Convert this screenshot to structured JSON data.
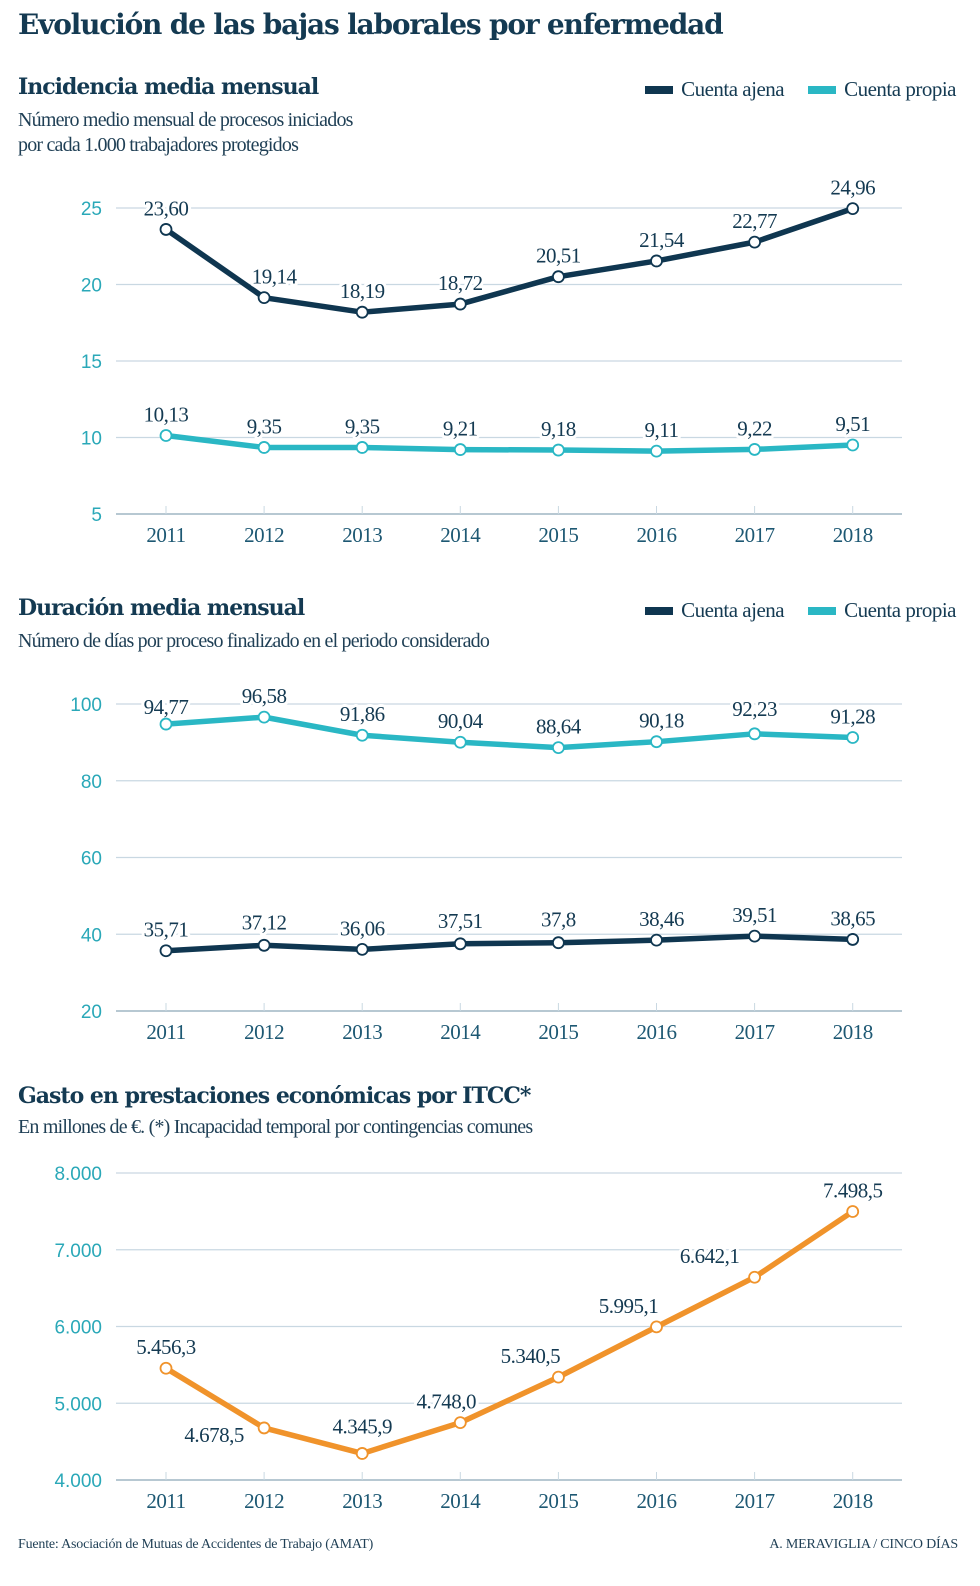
{
  "title": "Evolución de las bajas laborales por enfermedad",
  "colors": {
    "ajena": "#0f3650",
    "propia": "#2ab7c4",
    "gasto": "#f0932b",
    "axis": "#2aa8b8",
    "grid": "#c9d8e2",
    "text": "#143a52"
  },
  "legend": {
    "ajena": "Cuenta ajena",
    "propia": "Cuenta propia"
  },
  "chart_data": [
    {
      "type": "line",
      "title": "Incidencia media mensual",
      "subtitle_lines": [
        "Número medio mensual de procesos iniciados",
        "por cada 1.000 trabajadores protegidos"
      ],
      "x": [
        "2011",
        "2012",
        "2013",
        "2014",
        "2015",
        "2016",
        "2017",
        "2018"
      ],
      "ylim": [
        5,
        25
      ],
      "yticks": [
        5,
        10,
        15,
        20,
        25
      ],
      "ytick_labels": [
        "5",
        "10",
        "15",
        "20",
        "25"
      ],
      "grid": true,
      "legend_position": "top-right",
      "series": [
        {
          "name": "Cuenta ajena",
          "key": "ajena",
          "values": [
            23.6,
            19.14,
            18.19,
            18.72,
            20.51,
            21.54,
            22.77,
            24.96
          ],
          "labels": [
            "23,60",
            "19,14",
            "18,19",
            "18,72",
            "20,51",
            "21,54",
            "22,77",
            "24,96"
          ]
        },
        {
          "name": "Cuenta propia",
          "key": "propia",
          "values": [
            10.13,
            9.35,
            9.35,
            9.21,
            9.18,
            9.11,
            9.22,
            9.51
          ],
          "labels": [
            "10,13",
            "9,35",
            "9,35",
            "9,21",
            "9,18",
            "9,11",
            "9,22",
            "9,51"
          ]
        }
      ]
    },
    {
      "type": "line",
      "title": "Duración media mensual",
      "subtitle_lines": [
        "Número de días por proceso finalizado en el periodo considerado"
      ],
      "x": [
        "2011",
        "2012",
        "2013",
        "2014",
        "2015",
        "2016",
        "2017",
        "2018"
      ],
      "ylim": [
        20,
        100
      ],
      "yticks": [
        20,
        40,
        60,
        80,
        100
      ],
      "ytick_labels": [
        "20",
        "40",
        "60",
        "80",
        "100"
      ],
      "grid": true,
      "legend_position": "top-right",
      "series": [
        {
          "name": "Cuenta ajena",
          "key": "ajena",
          "values": [
            35.71,
            37.12,
            36.06,
            37.51,
            37.8,
            38.46,
            39.51,
            38.65
          ],
          "labels": [
            "35,71",
            "37,12",
            "36,06",
            "37,51",
            "37,8",
            "38,46",
            "39,51",
            "38,65"
          ]
        },
        {
          "name": "Cuenta propia",
          "key": "propia",
          "values": [
            94.77,
            96.58,
            91.86,
            90.04,
            88.64,
            90.18,
            92.23,
            91.28
          ],
          "labels": [
            "94,77",
            "96,58",
            "91,86",
            "90,04",
            "88,64",
            "90,18",
            "92,23",
            "91,28"
          ]
        }
      ]
    },
    {
      "type": "line",
      "title": "Gasto en prestaciones económicas por ITCC*",
      "subtitle_lines": [
        "En millones de €. (*) Incapacidad temporal por contingencias comunes"
      ],
      "x": [
        "2011",
        "2012",
        "2013",
        "2014",
        "2015",
        "2016",
        "2017",
        "2018"
      ],
      "ylim": [
        4000,
        8000
      ],
      "yticks": [
        4000,
        5000,
        6000,
        7000,
        8000
      ],
      "ytick_labels": [
        "4.000",
        "5.000",
        "6.000",
        "7.000",
        "8.000"
      ],
      "grid": true,
      "legend_position": "none",
      "series": [
        {
          "name": "Gasto",
          "key": "gasto",
          "values": [
            5456.3,
            4678.5,
            4345.9,
            4748.0,
            5340.5,
            5995.1,
            6642.1,
            7498.5
          ],
          "labels": [
            "5.456,3",
            "4.678,5",
            "4.345,9",
            "4.748,0",
            "5.340,5",
            "5.995,1",
            "6.642,1",
            "7.498,5"
          ]
        }
      ]
    }
  ],
  "footer": {
    "source": "Fuente: Asociación de Mutuas de Accidentes de Trabajo (AMAT)",
    "credit": "A. MERAVIGLIA / CINCO DÍAS"
  }
}
